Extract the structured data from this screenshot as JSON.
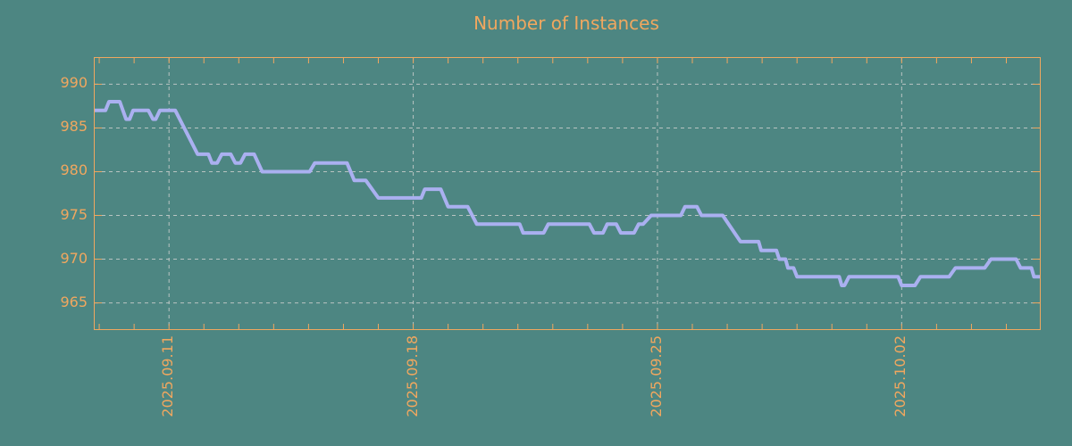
{
  "colors": {
    "background": "#4d8682",
    "accent_orange": "#f0a75f",
    "series_line": "#aab0f0",
    "gridline": "#b9c4c2"
  },
  "chart_data": {
    "type": "line",
    "title": "Number of Instances",
    "xlabel": "",
    "ylabel": "",
    "legend": "none",
    "grid": {
      "style": "dashed",
      "color": "#b9c4c2"
    },
    "x_axis": {
      "unit": "days relative to 2025.09.11",
      "range": [
        -2.13,
        24.96
      ],
      "minor_tick_interval": 1,
      "major_ticks": [
        {
          "pos": 0,
          "label": "2025.09.11"
        },
        {
          "pos": 7,
          "label": "2025.09.18"
        },
        {
          "pos": 14,
          "label": "2025.09.25"
        },
        {
          "pos": 21,
          "label": "2025.10.02"
        }
      ],
      "label_rotation_deg": 90
    },
    "y_axis": {
      "range": [
        962,
        993
      ],
      "major_ticks": [
        {
          "pos": 990,
          "label": "990"
        },
        {
          "pos": 985,
          "label": "985"
        },
        {
          "pos": 980,
          "label": "980"
        },
        {
          "pos": 975,
          "label": "975"
        },
        {
          "pos": 970,
          "label": "970"
        },
        {
          "pos": 965,
          "label": "965"
        }
      ]
    },
    "series": [
      {
        "name": "instances",
        "color": "#aab0f0",
        "points": [
          [
            -2.13,
            987
          ],
          [
            -1.82,
            987
          ],
          [
            -1.72,
            988
          ],
          [
            -1.41,
            988
          ],
          [
            -1.23,
            986
          ],
          [
            -1.13,
            986
          ],
          [
            -1.03,
            987
          ],
          [
            -0.59,
            987
          ],
          [
            -0.46,
            986
          ],
          [
            -0.38,
            986
          ],
          [
            -0.26,
            987
          ],
          [
            0.18,
            987
          ],
          [
            0.82,
            982
          ],
          [
            1.13,
            982
          ],
          [
            1.23,
            981
          ],
          [
            1.38,
            981
          ],
          [
            1.51,
            982
          ],
          [
            1.77,
            982
          ],
          [
            1.9,
            981
          ],
          [
            2.05,
            981
          ],
          [
            2.18,
            982
          ],
          [
            2.44,
            982
          ],
          [
            2.67,
            980
          ],
          [
            4.03,
            980
          ],
          [
            4.18,
            981
          ],
          [
            5.1,
            981
          ],
          [
            5.31,
            979
          ],
          [
            5.64,
            979
          ],
          [
            6.0,
            977
          ],
          [
            7.23,
            977
          ],
          [
            7.33,
            978
          ],
          [
            7.79,
            978
          ],
          [
            8.0,
            976
          ],
          [
            8.56,
            976
          ],
          [
            8.82,
            974
          ],
          [
            10.05,
            974
          ],
          [
            10.15,
            973
          ],
          [
            10.74,
            973
          ],
          [
            10.87,
            974
          ],
          [
            12.05,
            974
          ],
          [
            12.18,
            973
          ],
          [
            12.44,
            973
          ],
          [
            12.56,
            974
          ],
          [
            12.82,
            974
          ],
          [
            12.95,
            973
          ],
          [
            13.33,
            973
          ],
          [
            13.46,
            974
          ],
          [
            13.59,
            974
          ],
          [
            13.82,
            975
          ],
          [
            14.67,
            975
          ],
          [
            14.79,
            976
          ],
          [
            15.13,
            976
          ],
          [
            15.26,
            975
          ],
          [
            15.87,
            975
          ],
          [
            16.38,
            972
          ],
          [
            16.9,
            972
          ],
          [
            16.97,
            971
          ],
          [
            17.41,
            971
          ],
          [
            17.49,
            970
          ],
          [
            17.67,
            970
          ],
          [
            17.74,
            969
          ],
          [
            17.9,
            969
          ],
          [
            18.0,
            968
          ],
          [
            19.21,
            968
          ],
          [
            19.28,
            967
          ],
          [
            19.36,
            967
          ],
          [
            19.49,
            968
          ],
          [
            20.9,
            968
          ],
          [
            21.0,
            967
          ],
          [
            21.38,
            967
          ],
          [
            21.54,
            968
          ],
          [
            22.36,
            968
          ],
          [
            22.54,
            969
          ],
          [
            23.38,
            969
          ],
          [
            23.56,
            970
          ],
          [
            24.28,
            970
          ],
          [
            24.41,
            969
          ],
          [
            24.72,
            969
          ],
          [
            24.79,
            968
          ],
          [
            24.96,
            968
          ]
        ]
      }
    ]
  }
}
